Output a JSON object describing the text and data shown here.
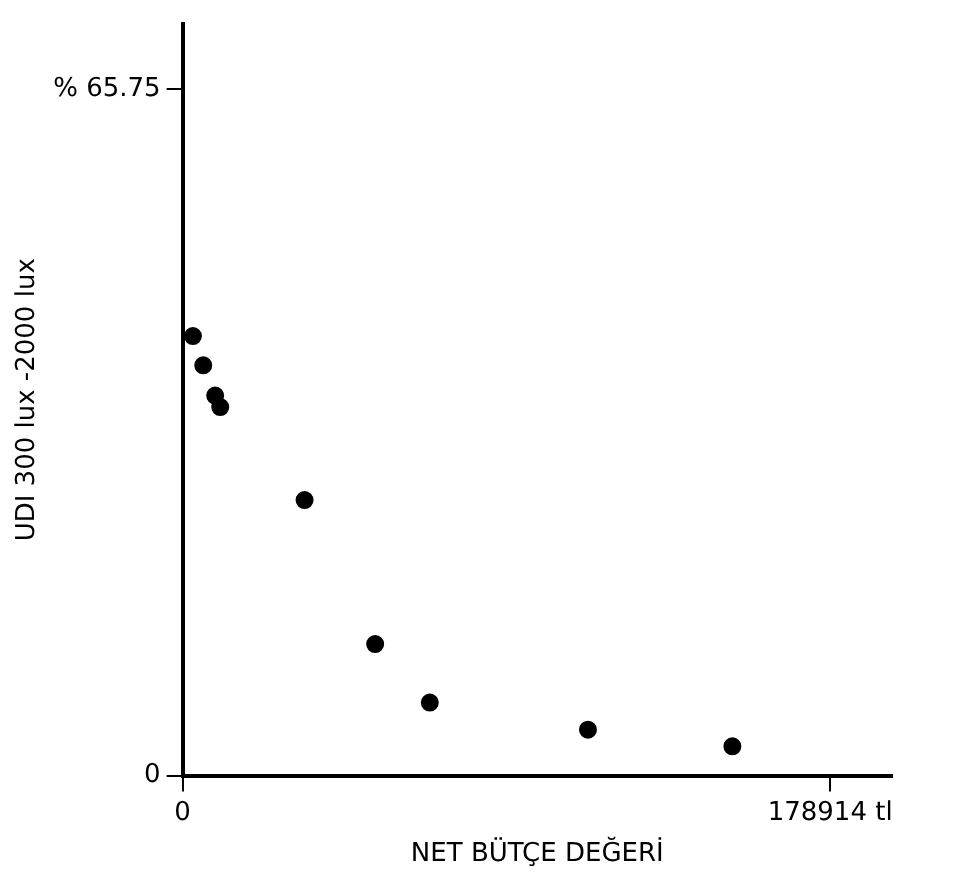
{
  "chart_data": {
    "type": "scatter",
    "xlabel": "NET BÜTÇE DEĞERİ",
    "ylabel": "UDI 300 lux -2000 lux",
    "x": [
      2850,
      5700,
      9000,
      10400,
      33700,
      53200,
      68300,
      112000,
      151900
    ],
    "series": [
      {
        "color": "#000000",
        "values": [
          42.1,
          39.3,
          36.4,
          35.3,
          26.4,
          12.6,
          7.0,
          4.4,
          2.8
        ]
      }
    ],
    "xlim": [
      0,
      196000
    ],
    "ylim": [
      0,
      72
    ],
    "xticks": [
      0,
      {
        "value": 178914,
        "label": "178914 tl"
      }
    ],
    "yticks": [
      0,
      {
        "value": 65.75,
        "label": "% 65.75"
      }
    ],
    "grid": false,
    "legend": false,
    "marker": "circle"
  }
}
